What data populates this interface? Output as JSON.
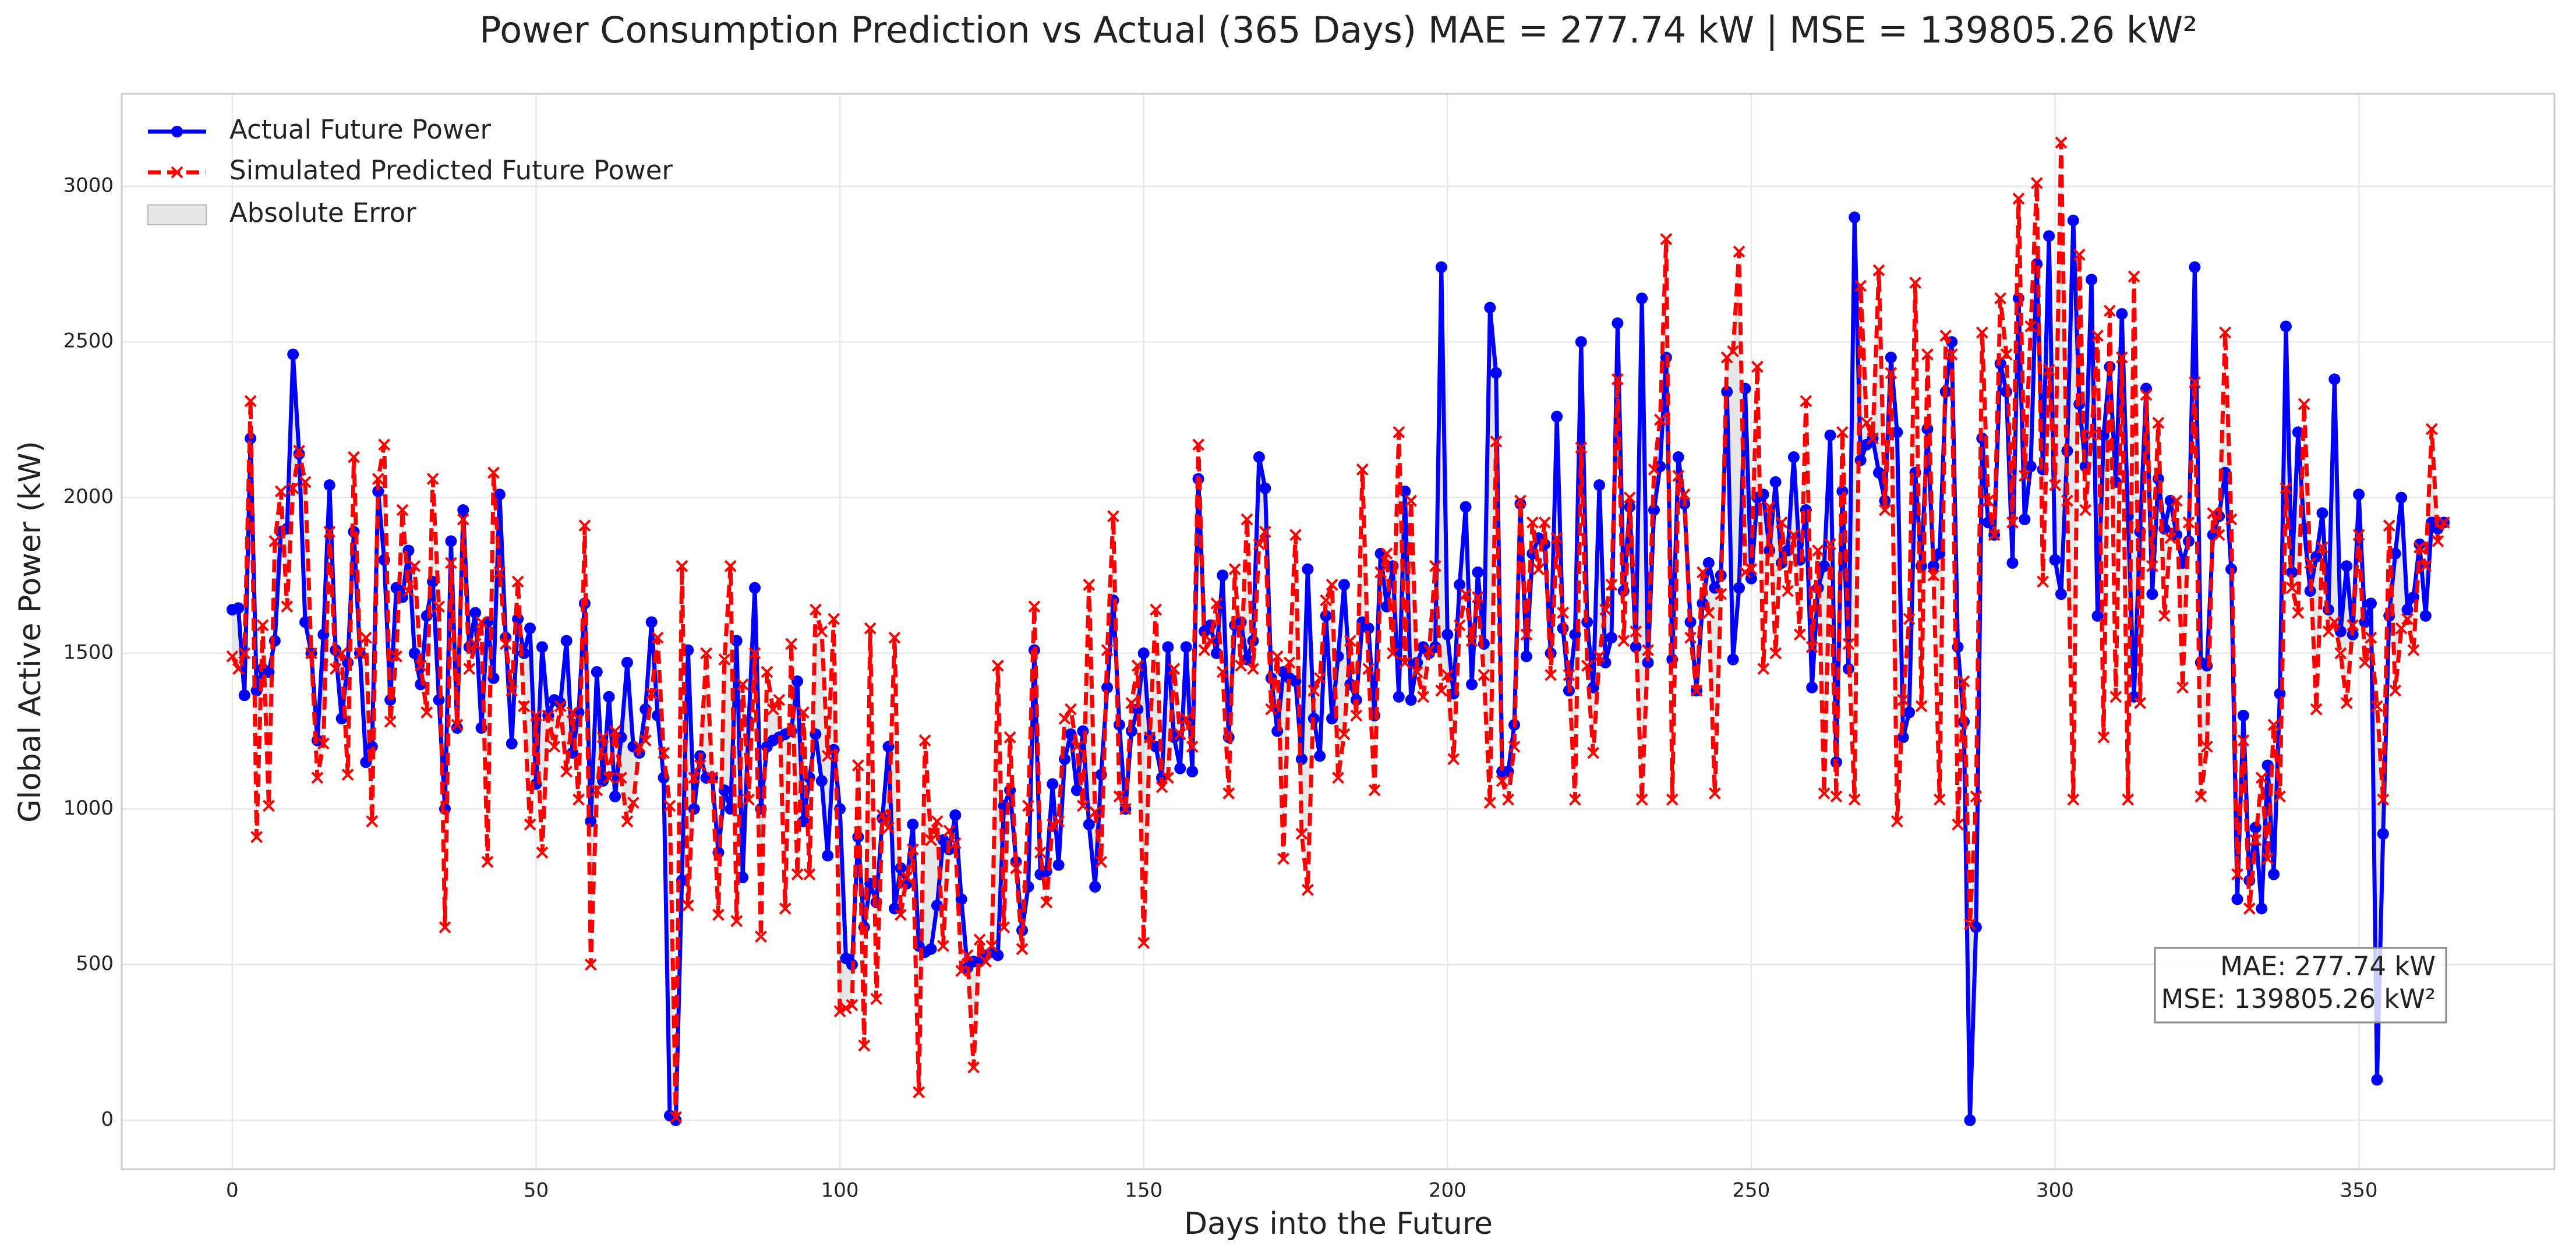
{
  "chart_data": {
    "type": "line",
    "title": "Power Consumption Prediction vs Actual (365 Days) MAE = 277.74 kW | MSE = 139805.26 kW²",
    "xlabel": "Days into the Future",
    "ylabel": "Global Active Power (kW)",
    "xlim": [
      -18.2,
      382.2
    ],
    "ylim": [
      -157,
      3297
    ],
    "xticks": [
      0,
      50,
      100,
      150,
      200,
      250,
      300,
      350
    ],
    "yticks": [
      0,
      500,
      1000,
      1500,
      2000,
      2500,
      3000
    ],
    "grid": true,
    "legend": "upper left",
    "annotations": [
      "MAE: 277.74 kW",
      "MSE: 139805.26 kW²"
    ],
    "error_fill": {
      "name": "Absolute Error",
      "color": "#c8c8c8"
    },
    "x": [
      0,
      1,
      2,
      3,
      4,
      5,
      6,
      7,
      8,
      9,
      10,
      11,
      12,
      13,
      14,
      15,
      16,
      17,
      18,
      19,
      20,
      21,
      22,
      23,
      24,
      25,
      26,
      27,
      28,
      29,
      30,
      31,
      32,
      33,
      34,
      35,
      36,
      37,
      38,
      39,
      40,
      41,
      42,
      43,
      44,
      45,
      46,
      47,
      48,
      49,
      50,
      51,
      52,
      53,
      54,
      55,
      56,
      57,
      58,
      59,
      60,
      61,
      62,
      63,
      64,
      65,
      66,
      67,
      68,
      69,
      70,
      71,
      72,
      73,
      74,
      75,
      76,
      77,
      78,
      79,
      80,
      81,
      82,
      83,
      84,
      85,
      86,
      87,
      88,
      89,
      90,
      91,
      92,
      93,
      94,
      95,
      96,
      97,
      98,
      99,
      100,
      101,
      102,
      103,
      104,
      105,
      106,
      107,
      108,
      109,
      110,
      111,
      112,
      113,
      114,
      115,
      116,
      117,
      118,
      119,
      120,
      121,
      122,
      123,
      124,
      125,
      126,
      127,
      128,
      129,
      130,
      131,
      132,
      133,
      134,
      135,
      136,
      137,
      138,
      139,
      140,
      141,
      142,
      143,
      144,
      145,
      146,
      147,
      148,
      149,
      150,
      151,
      152,
      153,
      154,
      155,
      156,
      157,
      158,
      159,
      160,
      161,
      162,
      163,
      164,
      165,
      166,
      167,
      168,
      169,
      170,
      171,
      172,
      173,
      174,
      175,
      176,
      177,
      178,
      179,
      180,
      181,
      182,
      183,
      184,
      185,
      186,
      187,
      188,
      189,
      190,
      191,
      192,
      193,
      194,
      195,
      196,
      197,
      198,
      199,
      200,
      201,
      202,
      203,
      204,
      205,
      206,
      207,
      208,
      209,
      210,
      211,
      212,
      213,
      214,
      215,
      216,
      217,
      218,
      219,
      220,
      221,
      222,
      223,
      224,
      225,
      226,
      227,
      228,
      229,
      230,
      231,
      232,
      233,
      234,
      235,
      236,
      237,
      238,
      239,
      240,
      241,
      242,
      243,
      244,
      245,
      246,
      247,
      248,
      249,
      250,
      251,
      252,
      253,
      254,
      255,
      256,
      257,
      258,
      259,
      260,
      261,
      262,
      263,
      264,
      265,
      266,
      267,
      268,
      269,
      270,
      271,
      272,
      273,
      274,
      275,
      276,
      277,
      278,
      279,
      280,
      281,
      282,
      283,
      284,
      285,
      286,
      287,
      288,
      289,
      290,
      291,
      292,
      293,
      294,
      295,
      296,
      297,
      298,
      299,
      300,
      301,
      302,
      303,
      304,
      305,
      306,
      307,
      308,
      309,
      310,
      311,
      312,
      313,
      314,
      315,
      316,
      317,
      318,
      319,
      320,
      321,
      322,
      323,
      324,
      325,
      326,
      327,
      328,
      329,
      330,
      331,
      332,
      333,
      334,
      335,
      336,
      337,
      338,
      339,
      340,
      341,
      342,
      343,
      344,
      345,
      346,
      347,
      348,
      349,
      350,
      351,
      352,
      353,
      354,
      355,
      356,
      357,
      358,
      359,
      360,
      361,
      362,
      363,
      364
    ],
    "series": [
      {
        "name": "Actual Future Power",
        "color": "#0000ff",
        "values": [
          1640,
          1645,
          1365,
          2190,
          1380,
          1450,
          1440,
          1540,
          1890,
          1900,
          2460,
          2140,
          1600,
          1500,
          1220,
          1560,
          2040,
          1510,
          1290,
          1470,
          1890,
          1500,
          1150,
          1200,
          2020,
          1800,
          1350,
          1710,
          1680,
          1830,
          1500,
          1400,
          1620,
          1730,
          1350,
          1000,
          1860,
          1260,
          1960,
          1520,
          1630,
          1260,
          1600,
          1420,
          2010,
          1550,
          1210,
          1610,
          1500,
          1580,
          1080,
          1520,
          1300,
          1350,
          1340,
          1540,
          1180,
          1310,
          1660,
          960,
          1440,
          1090,
          1360,
          1040,
          1230,
          1470,
          1200,
          1180,
          1320,
          1600,
          1300,
          1100,
          15,
          0,
          770,
          1510,
          1000,
          1170,
          1100,
          1100,
          860,
          1060,
          1000,
          1540,
          780,
          1280,
          1710,
          1000,
          1200,
          1220,
          1230,
          1240,
          1250,
          1410,
          960,
          1100,
          1240,
          1090,
          850,
          1190,
          1000,
          520,
          500,
          910,
          620,
          760,
          700,
          970,
          1200,
          680,
          810,
          760,
          950,
          560,
          540,
          550,
          690,
          900,
          870,
          980,
          710,
          490,
          510,
          510,
          530,
          540,
          530,
          1010,
          1060,
          830,
          610,
          750,
          1510,
          790,
          800,
          1080,
          820,
          1160,
          1240,
          1060,
          1250,
          950,
          750,
          1110,
          1390,
          1670,
          1270,
          1000,
          1250,
          1320,
          1500,
          1230,
          1200,
          1100,
          1520,
          1230,
          1130,
          1520,
          1120,
          2060,
          1570,
          1590,
          1500,
          1750,
          1230,
          1590,
          1600,
          1480,
          1540,
          2130,
          2030,
          1420,
          1250,
          1440,
          1420,
          1410,
          1160,
          1770,
          1290,
          1170,
          1620,
          1290,
          1490,
          1720,
          1400,
          1350,
          1600,
          1580,
          1300,
          1820,
          1650,
          1780,
          1360,
          2020,
          1350,
          1470,
          1520,
          1500,
          1520,
          2740,
          1560,
          1370,
          1720,
          1970,
          1400,
          1760,
          1530,
          2610,
          2400,
          1120,
          1120,
          1270,
          1980,
          1490,
          1820,
          1870,
          1850,
          1500,
          2260,
          1580,
          1380,
          1560,
          2500,
          1600,
          1390,
          2040,
          1470,
          1550,
          2560,
          1700,
          1970,
          1520,
          2640,
          1470,
          1960,
          2100,
          2450,
          1480,
          2130,
          1980,
          1600,
          1380,
          1660,
          1790,
          1710,
          1750,
          2340,
          1480,
          1710,
          2350,
          1740,
          2000,
          2010,
          1830,
          2050,
          1790,
          1830,
          2130,
          1800,
          1960,
          1390,
          1710,
          1780,
          2200,
          1150,
          2020,
          1450,
          2900,
          2120,
          2170,
          2190,
          2080,
          1990,
          2450,
          2210,
          1230,
          1310,
          2080,
          1780,
          2220,
          1780,
          1820,
          2340,
          2500,
          1520,
          1280,
          0,
          620,
          2190,
          1920,
          1880,
          2430,
          2340,
          1790,
          2640,
          1930,
          2100,
          2750,
          2090,
          2840,
          1800,
          1690,
          2150,
          2890,
          2300,
          2100,
          2700,
          1620,
          2200,
          2420,
          2050,
          2590,
          1940,
          1360,
          1890,
          2350,
          1690,
          2060,
          1900,
          1990,
          1880,
          1790,
          1860,
          2740,
          1470,
          1460,
          1880,
          1940,
          2080,
          1770,
          710,
          1300,
          770,
          940,
          680,
          1140,
          790,
          1370,
          2550,
          1760,
          2210,
          1900,
          1700,
          1810,
          1950,
          1640,
          2380,
          1570,
          1780,
          1560,
          2010,
          1600,
          1660,
          130,
          920,
          1620,
          1820,
          2000,
          1640,
          1680,
          1850,
          1620,
          1920,
          1900,
          1920
        ]
      },
      {
        "name": "Simulated Predicted Future Power",
        "color": "#ff0000",
        "values": [
          1490,
          1450,
          1500,
          2310,
          910,
          1590,
          1010,
          1860,
          2020,
          1650,
          2030,
          2150,
          2050,
          1500,
          1100,
          1210,
          1890,
          1450,
          1500,
          1110,
          2130,
          1500,
          1550,
          960,
          2060,
          2170,
          1280,
          1490,
          1960,
          1700,
          1780,
          1460,
          1310,
          2060,
          1650,
          620,
          1790,
          1270,
          1930,
          1450,
          1530,
          1600,
          830,
          2080,
          1760,
          1530,
          1380,
          1730,
          1330,
          950,
          1300,
          860,
          1300,
          1200,
          1330,
          1120,
          1310,
          1030,
          1910,
          500,
          1060,
          1230,
          1100,
          1250,
          1100,
          960,
          1020,
          1200,
          1220,
          1370,
          1550,
          1180,
          1010,
          10,
          1780,
          690,
          1100,
          1140,
          1500,
          1100,
          660,
          1480,
          1780,
          640,
          1400,
          1030,
          1500,
          590,
          1440,
          1320,
          1350,
          680,
          1530,
          790,
          1310,
          790,
          1640,
          1570,
          1170,
          1610,
          350,
          360,
          370,
          1140,
          240,
          1580,
          390,
          980,
          940,
          1550,
          660,
          780,
          870,
          90,
          1220,
          900,
          960,
          560,
          930,
          890,
          480,
          530,
          170,
          580,
          510,
          560,
          1460,
          620,
          1230,
          810,
          550,
          1010,
          1650,
          860,
          700,
          950,
          960,
          1290,
          1320,
          1200,
          1010,
          1720,
          990,
          830,
          1510,
          1940,
          1040,
          1000,
          1340,
          1460,
          570,
          1230,
          1640,
          1070,
          1100,
          1450,
          1240,
          1290,
          1200,
          2170,
          1510,
          1540,
          1660,
          1440,
          1050,
          1770,
          1460,
          1930,
          1450,
          1850,
          1890,
          1320,
          1490,
          840,
          1470,
          1880,
          920,
          740,
          1380,
          1420,
          1670,
          1720,
          1100,
          1240,
          1540,
          1300,
          2090,
          1450,
          1060,
          1760,
          1820,
          1500,
          2210,
          1470,
          1990,
          1440,
          1360,
          1510,
          1780,
          1380,
          1430,
          1160,
          1590,
          1690,
          1540,
          1680,
          1430,
          1020,
          2180,
          1090,
          1030,
          1200,
          1990,
          1560,
          1920,
          1770,
          1920,
          1430,
          1870,
          1630,
          1430,
          1030,
          2160,
          1460,
          1180,
          1490,
          1640,
          1720,
          2380,
          1540,
          2000,
          1570,
          1030,
          1510,
          2090,
          2250,
          2830,
          1030,
          2070,
          2010,
          1550,
          1380,
          1760,
          1630,
          1050,
          1690,
          2450,
          2470,
          2790,
          1760,
          1770,
          2420,
          1450,
          1970,
          1500,
          1920,
          1700,
          1880,
          1560,
          2310,
          1520,
          1830,
          1050,
          1850,
          1040,
          2210,
          1530,
          1030,
          2680,
          2240,
          2190,
          2730,
          1960,
          2400,
          960,
          1350,
          1610,
          2690,
          1330,
          2460,
          1750,
          1030,
          2520,
          2460,
          950,
          1410,
          630,
          1040,
          2530,
          1990,
          1880,
          2640,
          2460,
          1920,
          2960,
          2070,
          2550,
          3010,
          1730,
          2410,
          2040,
          3140,
          1990,
          1030,
          2780,
          1960,
          2200,
          2520,
          1230,
          2600,
          1360,
          2450,
          1030,
          2710,
          1340,
          2330,
          1780,
          2240,
          1620,
          1870,
          1990,
          1390,
          1920,
          2370,
          1040,
          1200,
          1950,
          1880,
          2530,
          1930,
          790,
          1220,
          680,
          900,
          1100,
          840,
          1270,
          1040,
          2030,
          1710,
          1630,
          2300,
          1790,
          1320,
          1840,
          1570,
          1600,
          1500,
          1340,
          1590,
          1880,
          1470,
          1550,
          1330,
          1030,
          1910,
          1380,
          1580,
          1610,
          1510,
          1840,
          1780,
          2220,
          1860,
          1920
        ]
      }
    ]
  }
}
